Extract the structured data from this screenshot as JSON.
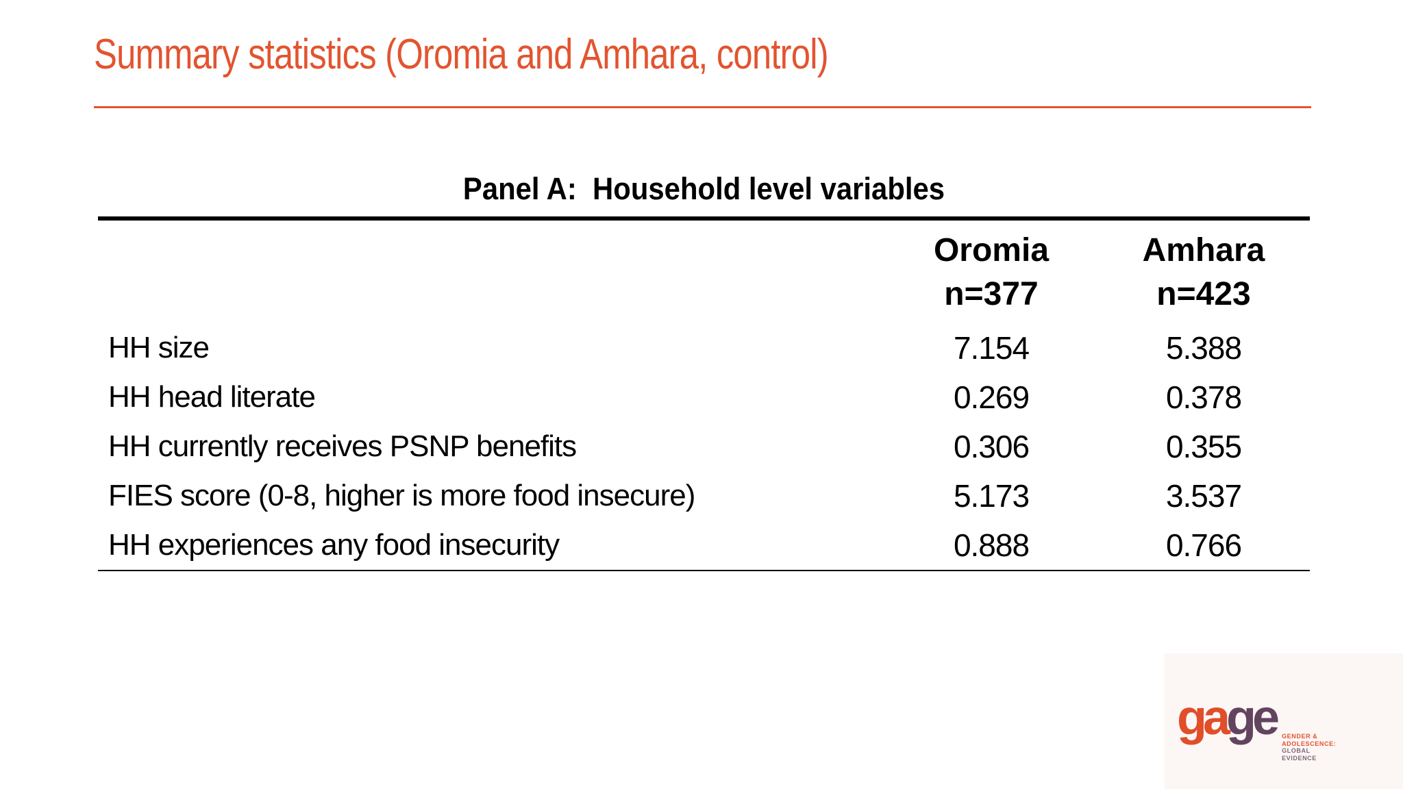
{
  "slide": {
    "title": "Summary statistics (Oromia and Amhara, control)",
    "accent_color": "#E2542F"
  },
  "table": {
    "panel_heading": "Panel A:  Household level variables",
    "columns": [
      {
        "region": "Oromia",
        "n": "n=377"
      },
      {
        "region": "Amhara",
        "n": "n=423"
      }
    ],
    "rows": [
      {
        "label": "HH size",
        "oromia": "7.154",
        "amhara": "5.388"
      },
      {
        "label": "HH head literate",
        "oromia": "0.269",
        "amhara": "0.378"
      },
      {
        "label": "HH currently receives PSNP benefits",
        "oromia": "0.306",
        "amhara": "0.355"
      },
      {
        "label": "FIES score (0-8, higher is more food insecure)",
        "oromia": "5.173",
        "amhara": "3.537"
      },
      {
        "label": "HH experiences any food insecurity",
        "oromia": "0.888",
        "amhara": "0.766"
      }
    ]
  },
  "chart_data": {
    "type": "table",
    "title": "Panel A: Household level variables",
    "categories": [
      "HH size",
      "HH head literate",
      "HH currently receives PSNP benefits",
      "FIES score (0-8, higher is more food insecure)",
      "HH experiences any food insecurity"
    ],
    "series": [
      {
        "name": "Oromia (n=377)",
        "values": [
          7.154,
          0.269,
          0.306,
          5.173,
          0.888
        ]
      },
      {
        "name": "Amhara (n=423)",
        "values": [
          5.388,
          0.378,
          0.355,
          3.537,
          0.766
        ]
      }
    ]
  },
  "logo": {
    "word_part1": "ga",
    "word_part2": "ge",
    "tagline_line1": "GENDER &",
    "tagline_line2": "ADOLESCENCE:",
    "tagline_line3": "GLOBAL",
    "tagline_line4": "EVIDENCE",
    "orange": "#E04E2A",
    "purple": "#63445F"
  }
}
